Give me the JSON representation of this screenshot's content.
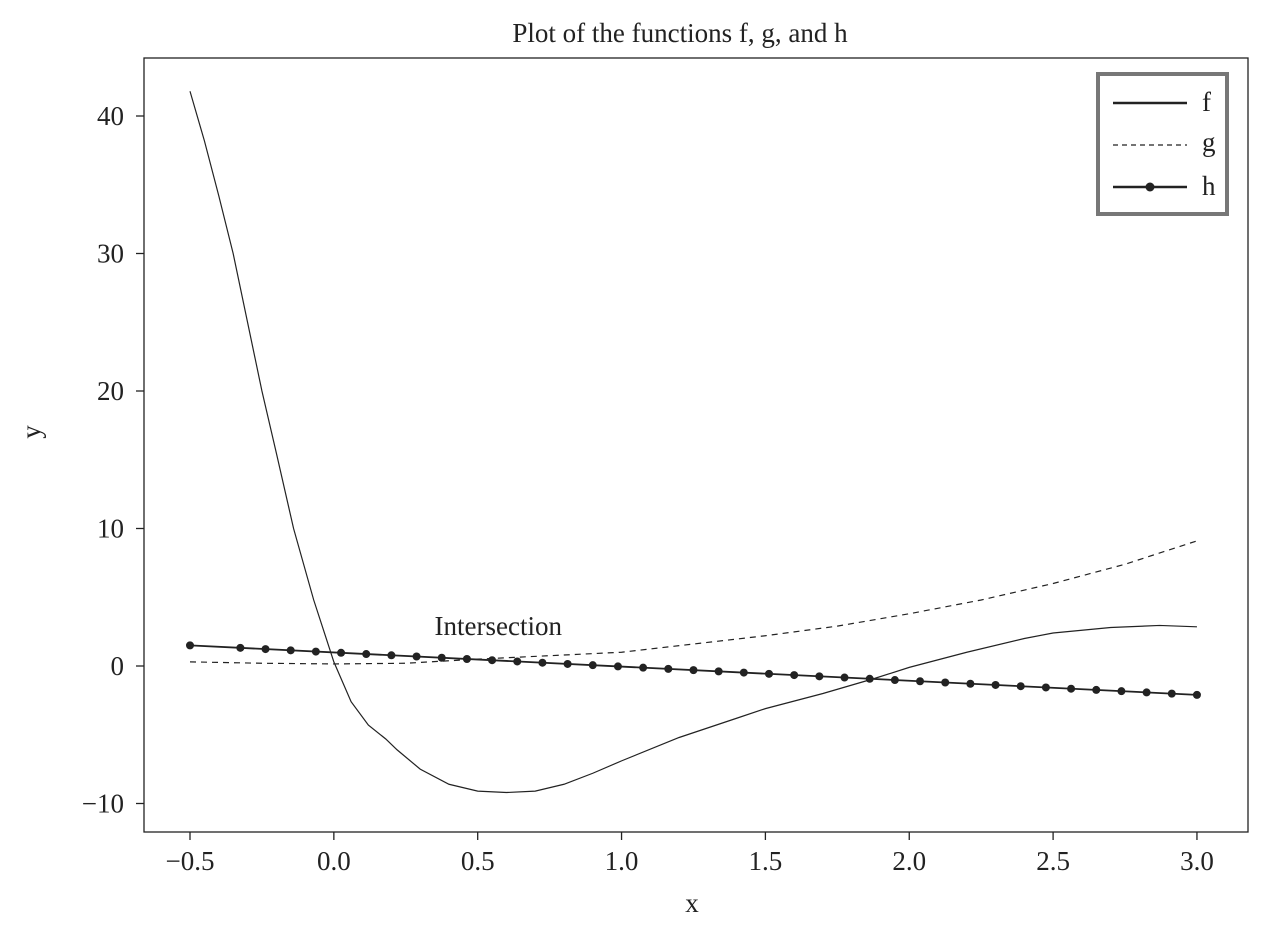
{
  "chart_data": {
    "type": "line",
    "title": "Plot of the functions f, g, and h",
    "xlabel": "x",
    "ylabel": "y",
    "xlim": [
      -0.66,
      3.17
    ],
    "ylim": [
      -12.1,
      44.2
    ],
    "xticks": [
      -0.5,
      0.0,
      0.5,
      1.0,
      1.5,
      2.0,
      2.5,
      3.0
    ],
    "xtick_labels": [
      "−0.5",
      "0.0",
      "0.5",
      "1.0",
      "1.5",
      "2.0",
      "2.5",
      "3.0"
    ],
    "yticks": [
      -10,
      0,
      10,
      20,
      30,
      40
    ],
    "ytick_labels": [
      "−10",
      "0",
      "10",
      "20",
      "30",
      "40"
    ],
    "grid": false,
    "legend_position": "top-right",
    "annotation": {
      "text": "Intersection",
      "x": 0.35,
      "y": 2.9
    },
    "series": [
      {
        "name": "f",
        "style": "solid",
        "x": [
          -0.5,
          -0.45,
          -0.4,
          -0.35,
          -0.3,
          -0.25,
          -0.2,
          -0.14,
          -0.07,
          0.0,
          0.06,
          0.12,
          0.18,
          0.22,
          0.3,
          0.4,
          0.5,
          0.6,
          0.7,
          0.8,
          0.9,
          1.0,
          1.2,
          1.4,
          1.5,
          1.7,
          1.88,
          2.0,
          2.2,
          2.4,
          2.5,
          2.7,
          2.87,
          3.0
        ],
        "y": [
          41.8,
          38.2,
          34.2,
          30.0,
          25.0,
          20.0,
          15.5,
          10.0,
          4.8,
          0.3,
          -2.6,
          -4.3,
          -5.3,
          -6.1,
          -7.5,
          -8.6,
          -9.1,
          -9.2,
          -9.1,
          -8.6,
          -7.8,
          -6.9,
          -5.2,
          -3.8,
          -3.1,
          -2.0,
          -0.9,
          -0.1,
          1.0,
          2.0,
          2.4,
          2.8,
          2.95,
          2.85
        ]
      },
      {
        "name": "g",
        "style": "dashed",
        "x": [
          -0.5,
          -0.25,
          0.0,
          0.25,
          0.5,
          0.75,
          1.0,
          1.25,
          1.5,
          1.75,
          2.0,
          2.25,
          2.5,
          2.75,
          3.0
        ],
        "y": [
          0.3,
          0.2,
          0.15,
          0.2,
          0.5,
          0.75,
          1.0,
          1.6,
          2.2,
          2.9,
          3.8,
          4.8,
          6.0,
          7.4,
          9.1
        ]
      },
      {
        "name": "h",
        "style": "solid-marker",
        "x": [
          -0.5,
          3.0
        ],
        "y": [
          1.5,
          -2.1
        ],
        "marker_x": [
          -0.5,
          -0.325,
          -0.2375,
          -0.15,
          -0.0625,
          0.025,
          0.1125,
          0.2,
          0.2875,
          0.375,
          0.4625,
          0.55,
          0.6375,
          0.725,
          0.8125,
          0.9,
          0.9875,
          1.075,
          1.1625,
          1.25,
          1.3375,
          1.425,
          1.5125,
          1.6,
          1.6875,
          1.775,
          1.8625,
          1.95,
          2.0375,
          2.125,
          2.2125,
          2.3,
          2.3875,
          2.475,
          2.5625,
          2.65,
          2.7375,
          2.825,
          2.9125,
          3.0
        ]
      }
    ]
  }
}
